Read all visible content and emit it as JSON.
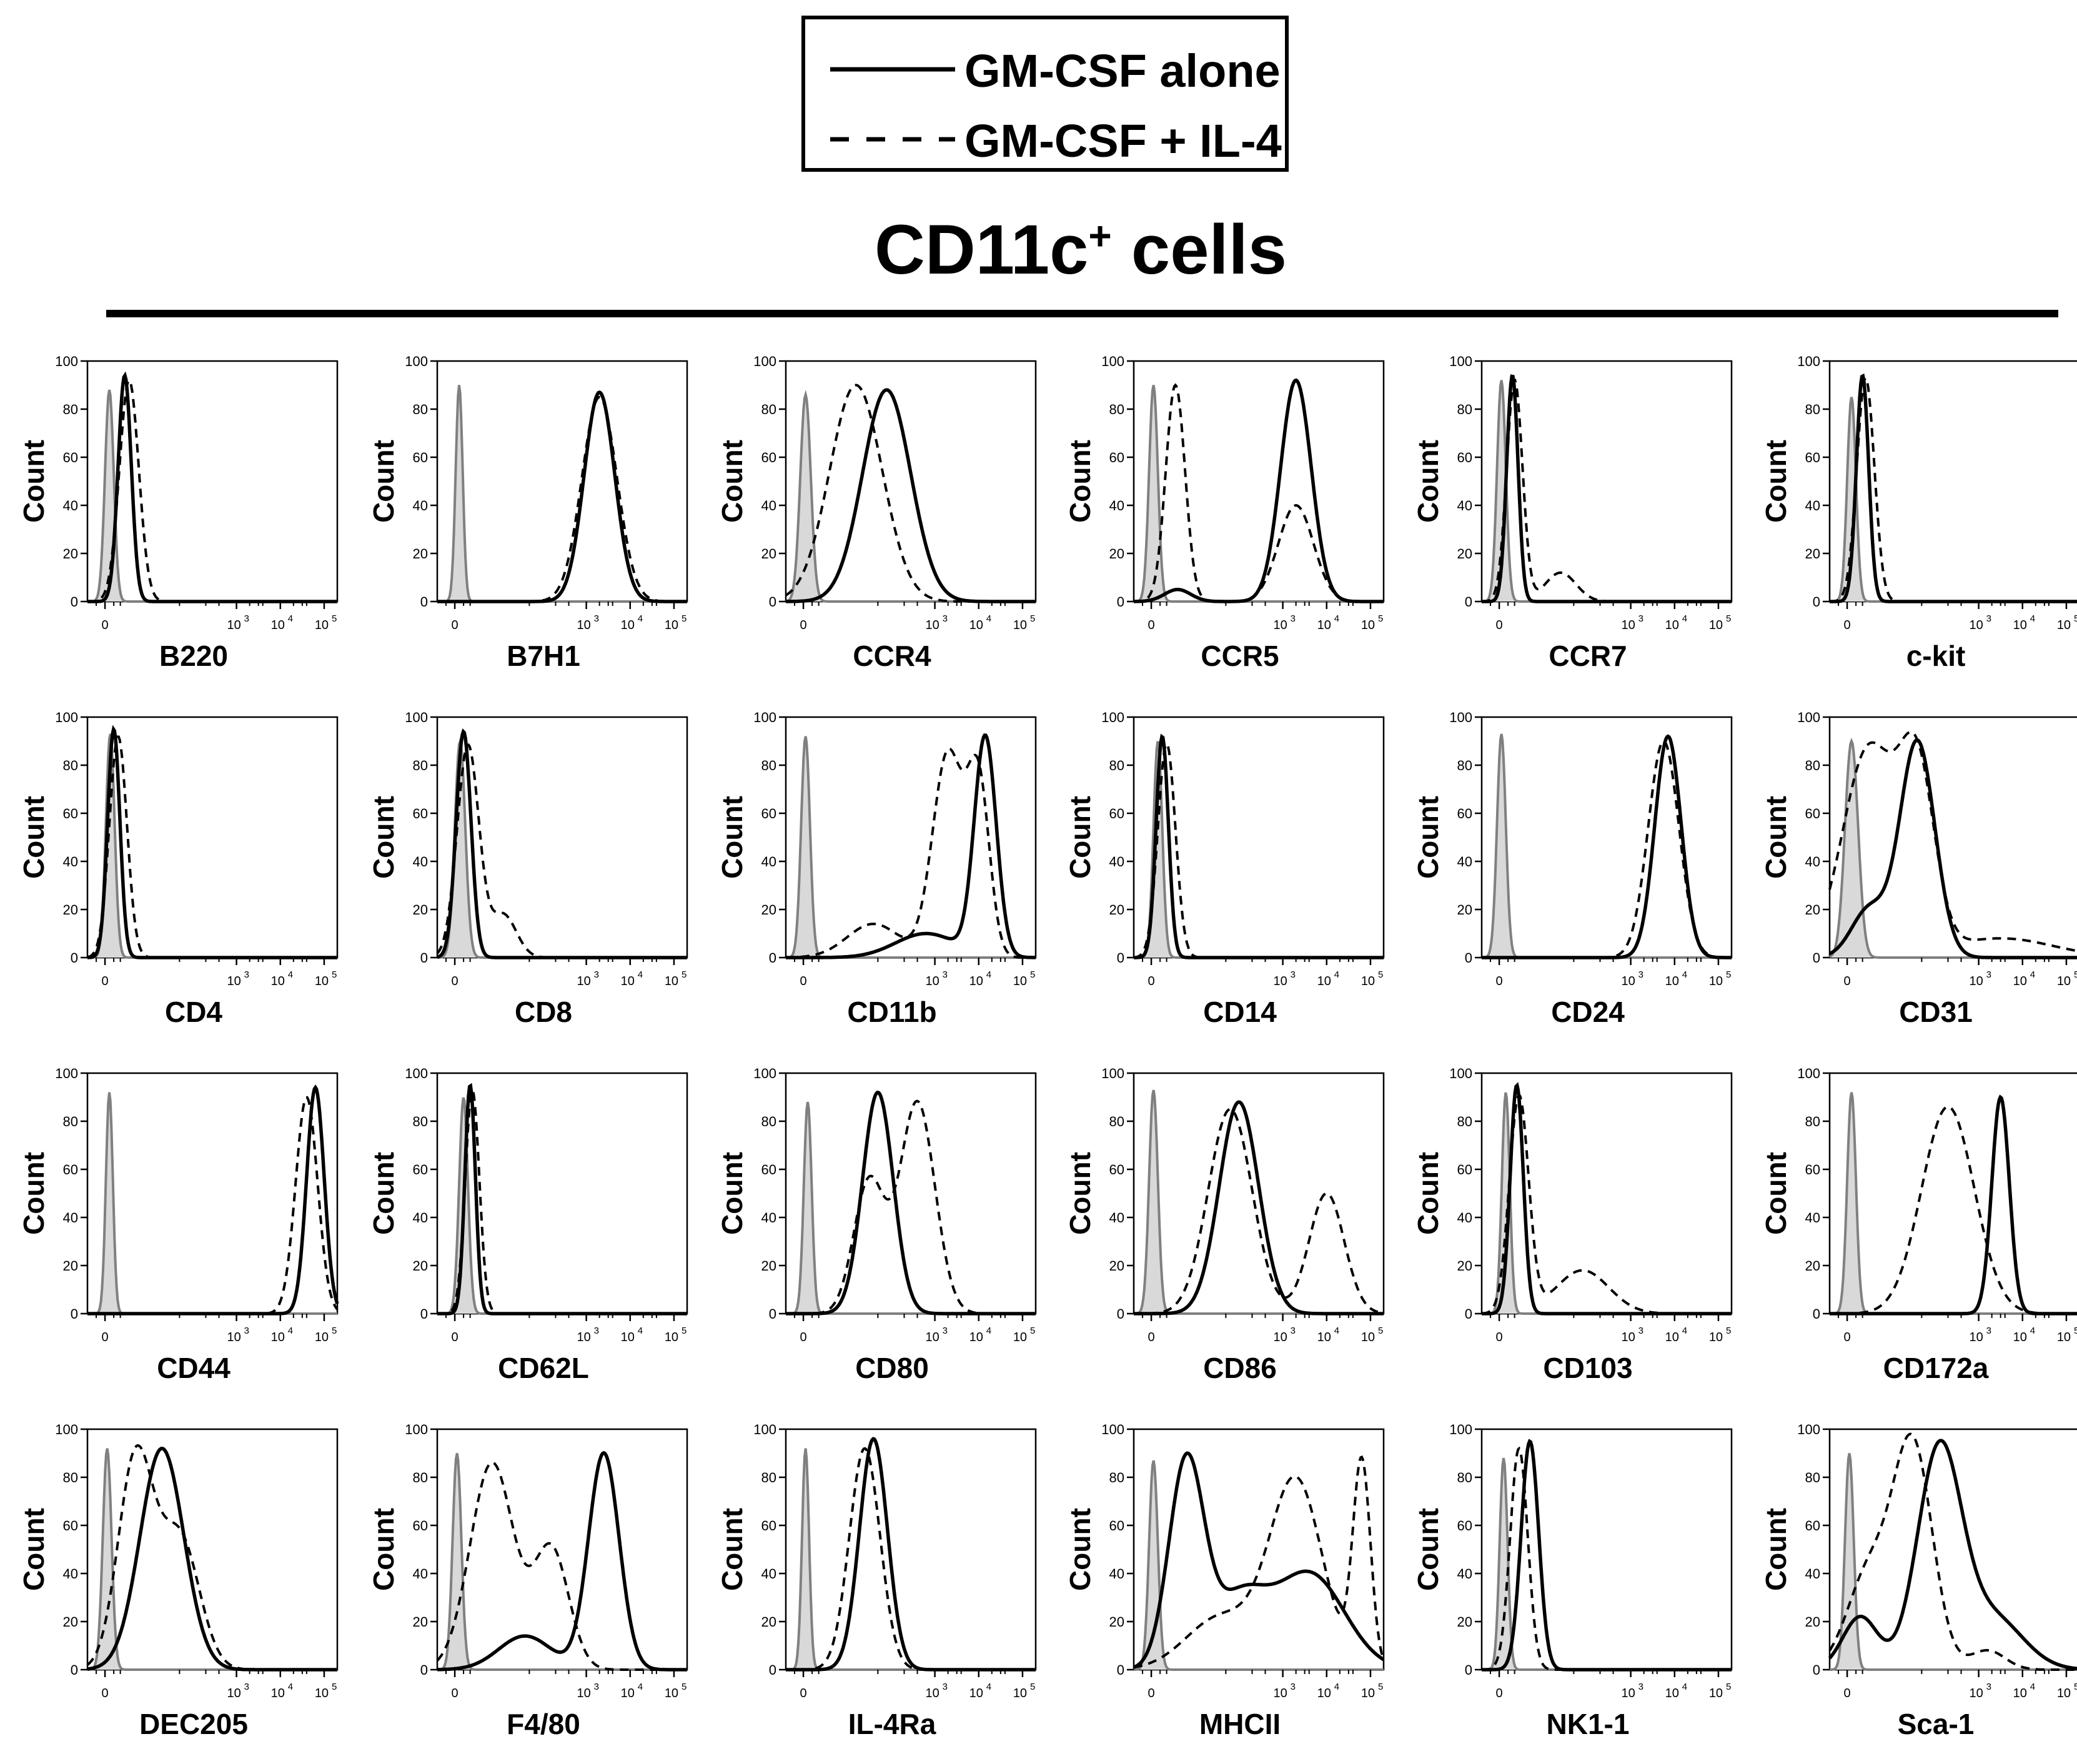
{
  "legend": {
    "solid_label": "GM-CSF alone",
    "dashed_label": "GM-CSF + IL-4"
  },
  "header": {
    "title_main": "CD11c",
    "title_sup": "+",
    "title_rest": " cells"
  },
  "colors": {
    "line": "#000000",
    "isotype_fill": "#d9d9d9",
    "isotype_line": "#808080"
  },
  "chart_data": {
    "type": "histogram-grid",
    "ylabel": "Count",
    "y_ticks": [
      "0",
      "20",
      "40",
      "60",
      "80",
      "100"
    ],
    "ylim": [
      0,
      100
    ],
    "x_axis": "biexponential log10 fluorescence (0 to 10^5)",
    "xlim_log": [
      -0.4,
      5.3
    ],
    "x_ticks": [
      {
        "label": "0",
        "value": 0
      },
      {
        "label": "10",
        "sup": "3",
        "value": 3
      },
      {
        "label": "10",
        "sup": "4",
        "value": 4
      },
      {
        "label": "10",
        "sup": "5",
        "value": 5
      }
    ],
    "series": [
      "isotype control (filled grey)",
      "GM-CSF alone (solid)",
      "GM-CSF + IL-4 (dashed)"
    ],
    "panels": [
      {
        "marker": "B220",
        "iso": [
          [
            0.1,
            0.1,
            88
          ]
        ],
        "solid": [
          [
            0.45,
            0.15,
            94
          ]
        ],
        "dashed": [
          [
            0.55,
            0.22,
            92
          ]
        ]
      },
      {
        "marker": "B7H1",
        "iso": [
          [
            0.1,
            0.08,
            90
          ]
        ],
        "solid": [
          [
            3.3,
            0.35,
            87
          ]
        ],
        "dashed": [
          [
            3.3,
            0.4,
            85
          ]
        ]
      },
      {
        "marker": "CCR4",
        "iso": [
          [
            0.05,
            0.12,
            86
          ]
        ],
        "solid": [
          [
            1.9,
            0.55,
            88
          ]
        ],
        "dashed": [
          [
            1.2,
            0.6,
            90
          ]
        ]
      },
      {
        "marker": "CCR5",
        "iso": [
          [
            0.05,
            0.1,
            90
          ]
        ],
        "solid": [
          [
            3.3,
            0.35,
            92
          ],
          [
            0.6,
            0.3,
            5
          ]
        ],
        "dashed": [
          [
            0.55,
            0.22,
            90
          ],
          [
            3.3,
            0.4,
            40
          ]
        ]
      },
      {
        "marker": "CCR7",
        "iso": [
          [
            0.05,
            0.1,
            92
          ]
        ],
        "solid": [
          [
            0.3,
            0.13,
            94
          ]
        ],
        "dashed": [
          [
            0.35,
            0.18,
            92
          ],
          [
            1.4,
            0.35,
            12
          ]
        ]
      },
      {
        "marker": "c-kit",
        "iso": [
          [
            0.1,
            0.1,
            85
          ]
        ],
        "solid": [
          [
            0.35,
            0.14,
            94
          ]
        ],
        "dashed": [
          [
            0.42,
            0.2,
            93
          ]
        ]
      },
      {
        "marker": "CD4",
        "iso": [
          [
            0.12,
            0.1,
            93
          ]
        ],
        "solid": [
          [
            0.2,
            0.14,
            95
          ]
        ],
        "dashed": [
          [
            0.3,
            0.2,
            92
          ]
        ]
      },
      {
        "marker": "CD8",
        "iso": [
          [
            0.12,
            0.12,
            90
          ]
        ],
        "solid": [
          [
            0.2,
            0.17,
            94
          ]
        ],
        "dashed": [
          [
            0.3,
            0.25,
            88
          ],
          [
            1.1,
            0.3,
            18
          ]
        ]
      },
      {
        "marker": "CD11b",
        "iso": [
          [
            0.05,
            0.1,
            92
          ]
        ],
        "solid": [
          [
            4.15,
            0.25,
            91
          ],
          [
            2.8,
            0.7,
            10
          ]
        ],
        "dashed": [
          [
            3.3,
            0.35,
            85
          ],
          [
            4.0,
            0.25,
            70
          ],
          [
            1.6,
            0.6,
            14
          ]
        ]
      },
      {
        "marker": "CD14",
        "iso": [
          [
            0.15,
            0.1,
            90
          ]
        ],
        "solid": [
          [
            0.25,
            0.14,
            92
          ]
        ],
        "dashed": [
          [
            0.35,
            0.2,
            89
          ]
        ]
      },
      {
        "marker": "CD24",
        "iso": [
          [
            0.05,
            0.1,
            93
          ]
        ],
        "solid": [
          [
            3.85,
            0.3,
            92
          ]
        ],
        "dashed": [
          [
            3.75,
            0.35,
            90
          ]
        ]
      },
      {
        "marker": "CD31",
        "iso": [
          [
            0.1,
            0.15,
            90
          ]
        ],
        "solid": [
          [
            1.6,
            0.4,
            90
          ],
          [
            0.5,
            0.4,
            20
          ]
        ],
        "dashed": [
          [
            0.5,
            0.6,
            87
          ],
          [
            1.6,
            0.4,
            72
          ],
          [
            3.5,
            1.2,
            8
          ]
        ]
      },
      {
        "marker": "CD44",
        "iso": [
          [
            0.1,
            0.08,
            92
          ]
        ],
        "solid": [
          [
            4.8,
            0.2,
            94
          ]
        ],
        "dashed": [
          [
            4.6,
            0.25,
            90
          ]
        ]
      },
      {
        "marker": "CD62L",
        "iso": [
          [
            0.2,
            0.1,
            90
          ]
        ],
        "solid": [
          [
            0.35,
            0.12,
            95
          ]
        ],
        "dashed": [
          [
            0.4,
            0.16,
            93
          ]
        ]
      },
      {
        "marker": "CD80",
        "iso": [
          [
            0.1,
            0.09,
            88
          ]
        ],
        "solid": [
          [
            1.7,
            0.35,
            92
          ]
        ],
        "dashed": [
          [
            2.6,
            0.4,
            88
          ],
          [
            1.5,
            0.35,
            55
          ]
        ]
      },
      {
        "marker": "CD86",
        "iso": [
          [
            0.05,
            0.1,
            93
          ]
        ],
        "solid": [
          [
            2.0,
            0.45,
            88
          ]
        ],
        "dashed": [
          [
            1.8,
            0.5,
            85
          ],
          [
            4.0,
            0.4,
            50
          ]
        ]
      },
      {
        "marker": "CD103",
        "iso": [
          [
            0.15,
            0.09,
            92
          ]
        ],
        "solid": [
          [
            0.4,
            0.15,
            95
          ]
        ],
        "dashed": [
          [
            0.45,
            0.22,
            90
          ],
          [
            1.9,
            0.6,
            18
          ]
        ]
      },
      {
        "marker": "CD172a",
        "iso": [
          [
            0.1,
            0.1,
            92
          ]
        ],
        "solid": [
          [
            3.5,
            0.2,
            90
          ]
        ],
        "dashed": [
          [
            2.3,
            0.6,
            86
          ]
        ]
      },
      {
        "marker": "DEC205",
        "iso": [
          [
            0.05,
            0.1,
            92
          ]
        ],
        "solid": [
          [
            1.3,
            0.5,
            92
          ]
        ],
        "dashed": [
          [
            0.7,
            0.4,
            88
          ],
          [
            1.7,
            0.45,
            55
          ]
        ]
      },
      {
        "marker": "F4/80",
        "iso": [
          [
            0.05,
            0.1,
            90
          ]
        ],
        "solid": [
          [
            3.4,
            0.35,
            90
          ],
          [
            1.6,
            0.6,
            14
          ]
        ],
        "dashed": [
          [
            0.85,
            0.5,
            86
          ],
          [
            2.2,
            0.4,
            50
          ]
        ]
      },
      {
        "marker": "IL-4Ra",
        "iso": [
          [
            0.05,
            0.08,
            92
          ]
        ],
        "solid": [
          [
            1.6,
            0.32,
            96
          ]
        ],
        "dashed": [
          [
            1.4,
            0.35,
            92
          ]
        ]
      },
      {
        "marker": "MHCII",
        "iso": [
          [
            0.05,
            0.1,
            87
          ]
        ],
        "solid": [
          [
            0.8,
            0.4,
            86
          ],
          [
            3.6,
            0.8,
            40
          ],
          [
            2.0,
            0.6,
            28
          ]
        ],
        "dashed": [
          [
            3.3,
            0.6,
            78
          ],
          [
            4.8,
            0.2,
            85
          ],
          [
            1.6,
            0.8,
            22
          ]
        ]
      },
      {
        "marker": "NK1-1",
        "iso": [
          [
            0.1,
            0.09,
            88
          ]
        ],
        "solid": [
          [
            0.7,
            0.2,
            95
          ]
        ],
        "dashed": [
          [
            0.45,
            0.2,
            92
          ]
        ]
      },
      {
        "marker": "Sca-1",
        "iso": [
          [
            0.05,
            0.1,
            90
          ]
        ],
        "solid": [
          [
            2.1,
            0.5,
            90
          ],
          [
            0.3,
            0.4,
            22
          ],
          [
            3.3,
            0.7,
            22
          ]
        ],
        "dashed": [
          [
            1.5,
            0.45,
            92
          ],
          [
            0.5,
            0.5,
            40
          ],
          [
            3.2,
            0.4,
            8
          ]
        ]
      }
    ]
  }
}
